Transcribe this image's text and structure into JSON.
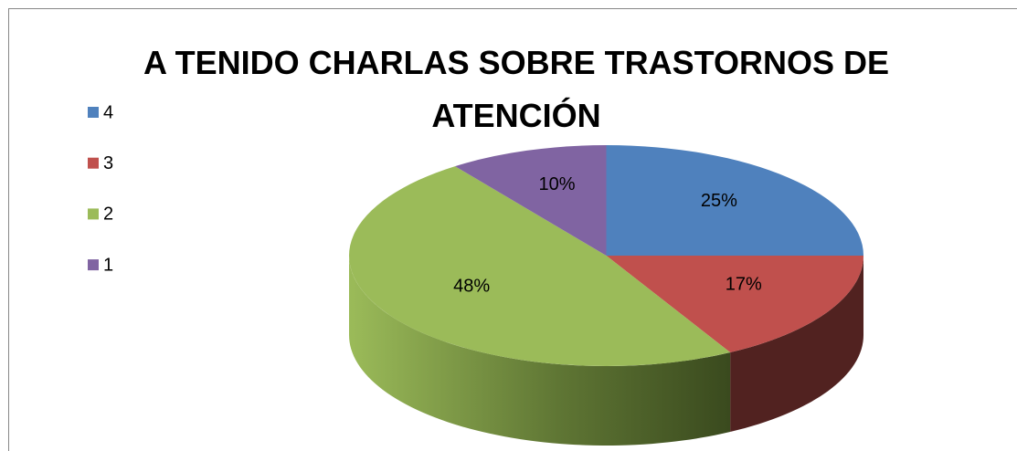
{
  "chart_data": {
    "type": "pie3d",
    "title": "A TENIDO CHARLAS SOBRE TRASTORNOS DE ATENCIÓN",
    "categories": [
      "4",
      "3",
      "2",
      "1"
    ],
    "values": [
      25,
      17,
      48,
      10
    ],
    "value_labels": [
      "25%",
      "17%",
      "48%",
      "10%"
    ],
    "colors": [
      "#4f81bd",
      "#c0504d",
      "#9bbb59",
      "#8064a2"
    ],
    "legend": "left"
  }
}
